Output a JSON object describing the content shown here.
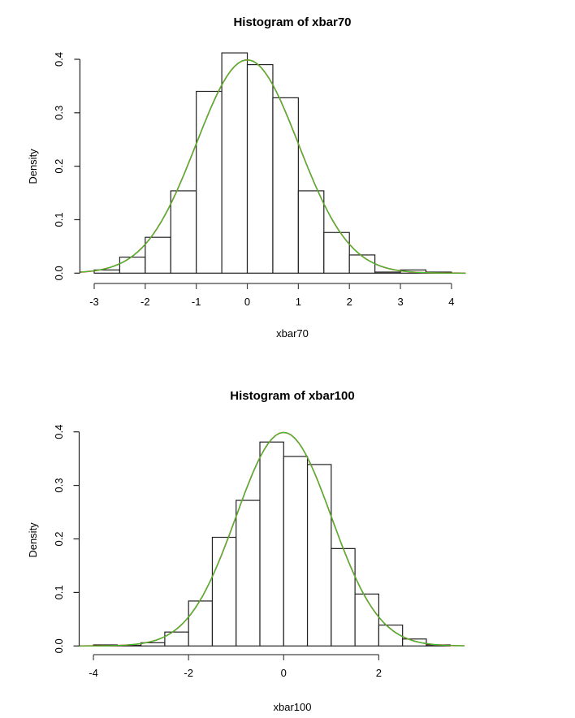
{
  "chart_data": [
    {
      "type": "bar",
      "subtype": "histogram",
      "title": "Histogram of xbar70",
      "xlabel": "xbar70",
      "ylabel": "Density",
      "xlim": [
        -3.28,
        4.28
      ],
      "ylim": [
        0,
        0.4
      ],
      "xticks": [
        -3,
        -2,
        -1,
        0,
        1,
        2,
        3,
        4
      ],
      "xtick_labels": [
        "-3",
        "-2",
        "-1",
        "0",
        "1",
        "2",
        "3",
        "4"
      ],
      "yticks": [
        0,
        0.1,
        0.2,
        0.3,
        0.4
      ],
      "ytick_labels": [
        "0.0",
        "0.1",
        "0.2",
        "0.3",
        "0.4"
      ],
      "breaks": [
        -3,
        -2.5,
        -2,
        -1.5,
        -1,
        -0.5,
        0,
        0.5,
        1,
        1.5,
        2,
        2.5,
        3,
        3.5,
        4
      ],
      "values": [
        0.006,
        0.03,
        0.067,
        0.154,
        0.34,
        0.412,
        0.39,
        0.328,
        0.154,
        0.076,
        0.034,
        0.002,
        0.006,
        0.002
      ],
      "curves": [
        {
          "kind": "normal-density",
          "mean": 0,
          "sd": 1,
          "color": "#e8241a"
        },
        {
          "kind": "normal-density",
          "mean": 0,
          "sd": 1,
          "color": "#2ecc2e"
        }
      ],
      "grid": false
    },
    {
      "type": "bar",
      "subtype": "histogram",
      "title": "Histogram of xbar100",
      "xlabel": "xbar100",
      "ylabel": "Density",
      "xlim": [
        -4.3,
        3.8
      ],
      "ylim": [
        0,
        0.4
      ],
      "xticks": [
        -4,
        -2,
        0,
        2
      ],
      "xtick_labels": [
        "-4",
        "-2",
        "0",
        "2"
      ],
      "yticks": [
        0,
        0.1,
        0.2,
        0.3,
        0.4
      ],
      "ytick_labels": [
        "0.0",
        "0.1",
        "0.2",
        "0.3",
        "0.4"
      ],
      "breaks": [
        -4,
        -3.5,
        -3,
        -2.5,
        -2,
        -1.5,
        -1,
        -0.5,
        0,
        0.5,
        1,
        1.5,
        2,
        2.5,
        3,
        3.5
      ],
      "values": [
        0.002,
        0.001,
        0.006,
        0.026,
        0.084,
        0.203,
        0.272,
        0.381,
        0.354,
        0.339,
        0.182,
        0.097,
        0.039,
        0.013,
        0.002
      ],
      "curves": [
        {
          "kind": "normal-density",
          "mean": 0,
          "sd": 1,
          "color": "#e8241a"
        },
        {
          "kind": "normal-density",
          "mean": 0,
          "sd": 1,
          "color": "#2ecc2e"
        }
      ],
      "grid": false
    }
  ]
}
